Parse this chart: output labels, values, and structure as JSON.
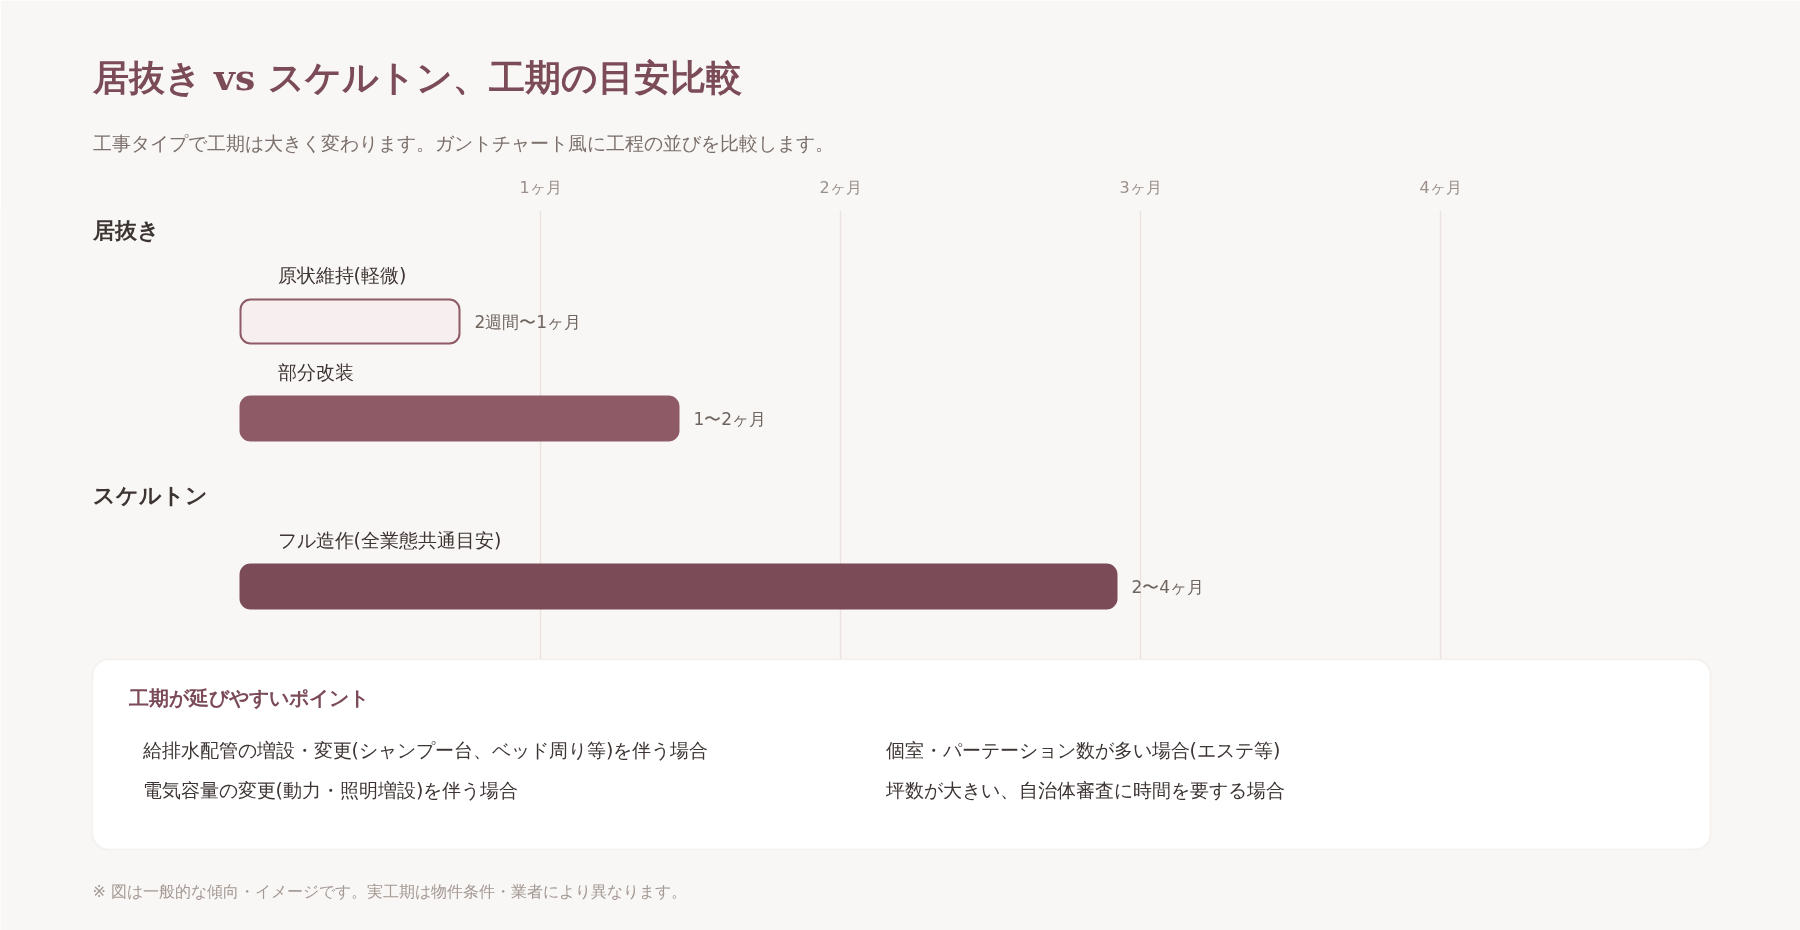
{
  "chart_data": {
    "type": "bar",
    "orientation": "horizontal",
    "title": "居抜き vs スケルトン、工期の目安比較",
    "subtitle": "工事タイプで工期は大きく変わります。ガントチャート風に工程の並びを比較します。",
    "categories": [
      "原状維持(軽微)",
      "部分改装",
      "フル造作(全業態共通目安)"
    ],
    "values": [
      0.73,
      1.46,
      2.92
    ],
    "colors": [
      "#f7eef0",
      "#8e5a66",
      "#7b4b58"
    ],
    "xticks": [
      {
        "value": 1,
        "label": "1ヶ月"
      },
      {
        "value": 2,
        "label": "2ヶ月"
      },
      {
        "value": 3,
        "label": "3ヶ月"
      },
      {
        "value": 4,
        "label": "4ヶ月"
      }
    ],
    "xlim": [
      -0.8,
      5.2
    ],
    "grid": "x",
    "annotations": [
      "2週間〜1ヶ月",
      "1〜2ヶ月",
      "2〜4ヶ月",
      "居抜き",
      "スケルトン",
      "工期が延びやすいポイント",
      "給排水配管の増設・変更(シャンプー台、ベッド周り等)を伴う場合",
      "電気容量の変更(動力・照明増設)を伴う場合",
      "個室・パーテーション数が多い場合(エステ等)",
      "坪数が大きい、自治体審査に時間を要する場合",
      "※ 図は一般的な傾向・イメージです。実工期は物件条件・業者により異なります。"
    ]
  }
}
